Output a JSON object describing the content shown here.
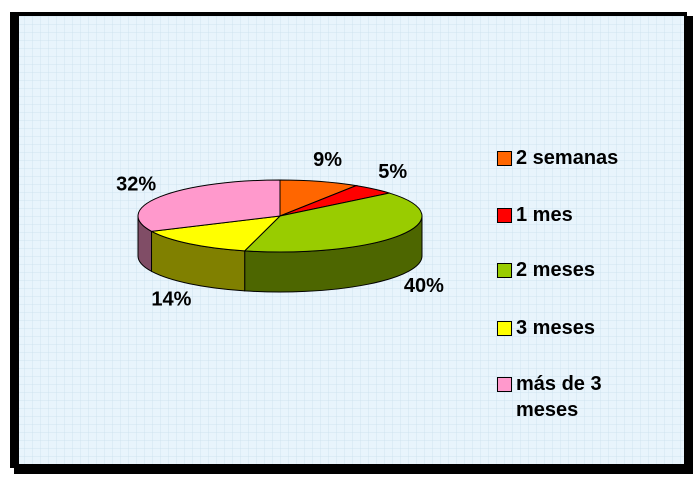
{
  "chart_data": {
    "type": "pie",
    "categories": [
      "2 semanas",
      "1 mes",
      "2 meses",
      "3 meses",
      "más de 3 meses"
    ],
    "values": [
      9,
      5,
      40,
      14,
      32
    ],
    "value_labels": [
      "9%",
      "5%",
      "40%",
      "14%",
      "32%"
    ],
    "colors": [
      "#ff6600",
      "#ff0000",
      "#99cc00",
      "#ffff00",
      "#ff99cc"
    ],
    "legend": "right"
  }
}
